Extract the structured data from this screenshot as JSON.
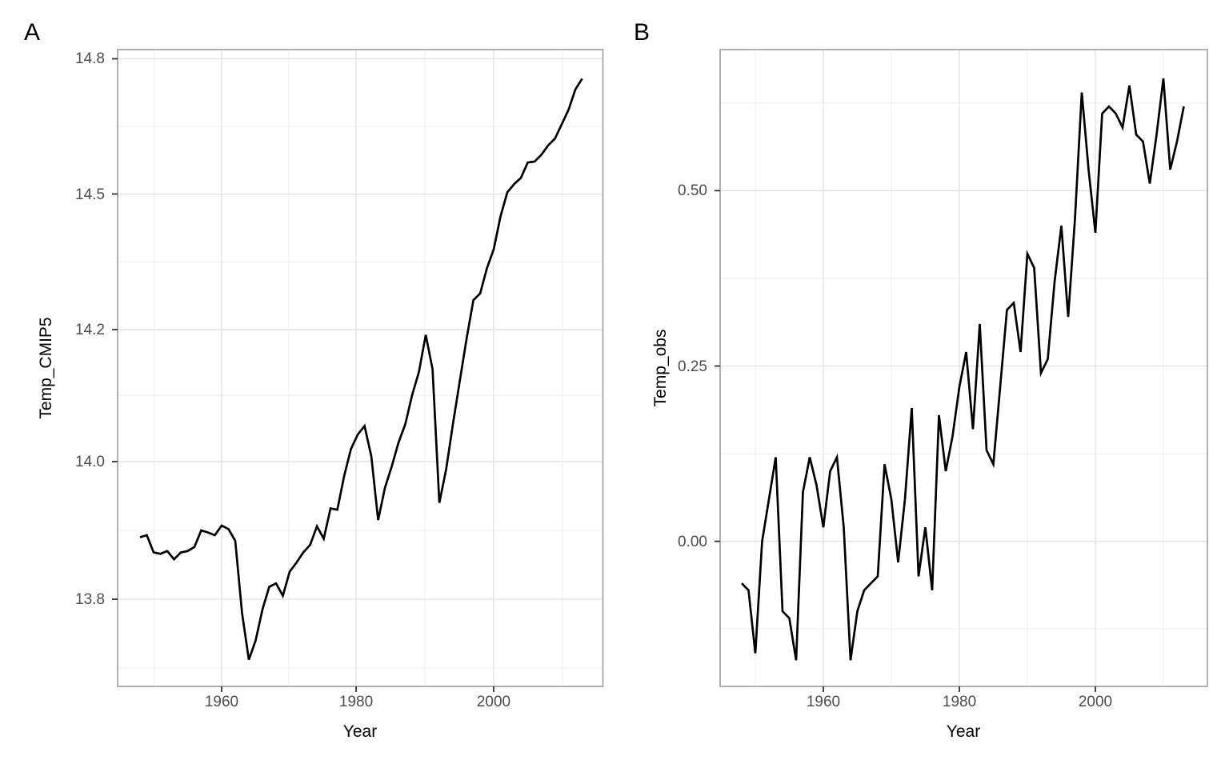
{
  "figure": {
    "background": "#ffffff",
    "line_color": "#000000",
    "grid_major_color": "#e2e2e2",
    "grid_minor_color": "#efefef",
    "panel_border_color": "#a7a7a7",
    "tick_text_color": "#4D4D4D",
    "axis_title_color": "#000000"
  },
  "chart_data": [
    {
      "type": "line",
      "panel_label": "A",
      "xlabel": "Year",
      "ylabel": "Temp_CMIP5",
      "grid": "on",
      "legend": "none",
      "xlim": [
        1944.7,
        2016.3
      ],
      "ylim": [
        13.71,
        14.82
      ],
      "x_ticks": [
        {
          "v": 1960,
          "label": "1960",
          "f": 0.2143
        },
        {
          "v": 1980,
          "label": "1980",
          "f": 0.4914
        },
        {
          "v": 2000,
          "label": "2000",
          "f": 0.7749
        }
      ],
      "x_minor": [
        0.0758,
        0.3529,
        0.6332,
        0.9167
      ],
      "x_scale": [
        {
          "v": 1948,
          "f": 0.0462
        },
        {
          "v": 2013,
          "f": 0.9573
        }
      ],
      "y_ticks": [
        {
          "v": 14.8,
          "label": "14.8",
          "f": 0.0144
        },
        {
          "v": 14.5,
          "label": "14.5",
          "f": 0.2268
        },
        {
          "v": 14.2,
          "label": "14.2",
          "f": 0.4397
        },
        {
          "v": 14.0,
          "label": "14.0",
          "f": 0.647
        },
        {
          "v": 13.8,
          "label": "13.8",
          "f": 0.8631
        }
      ],
      "y_minor": [
        0.1206,
        0.3333,
        0.5433,
        0.755,
        0.9711
      ],
      "y_scale": [
        {
          "v": 13.6,
          "f": 1.0791
        },
        {
          "v": 13.8,
          "f": 0.8631
        },
        {
          "v": 14.0,
          "f": 0.647
        },
        {
          "v": 14.2,
          "f": 0.4397
        },
        {
          "v": 14.5,
          "f": 0.2268
        },
        {
          "v": 14.8,
          "f": 0.0144
        }
      ],
      "years": [
        1948,
        1949,
        1950,
        1951,
        1952,
        1953,
        1954,
        1955,
        1956,
        1957,
        1958,
        1959,
        1960,
        1961,
        1962,
        1963,
        1964,
        1965,
        1966,
        1967,
        1968,
        1969,
        1970,
        1971,
        1972,
        1973,
        1974,
        1975,
        1976,
        1977,
        1978,
        1979,
        1980,
        1981,
        1982,
        1983,
        1984,
        1985,
        1986,
        1987,
        1988,
        1989,
        1990,
        1991,
        1992,
        1993,
        1994,
        1995,
        1996,
        1997,
        1998,
        1999,
        2000,
        2001,
        2002,
        2003,
        2004,
        2005,
        2006,
        2007,
        2008,
        2009,
        2010,
        2011,
        2012,
        2013
      ],
      "values": [
        13.89,
        13.893,
        13.868,
        13.866,
        13.87,
        13.858,
        13.868,
        13.87,
        13.876,
        13.9,
        13.897,
        13.893,
        13.907,
        13.902,
        13.885,
        13.78,
        13.712,
        13.74,
        13.785,
        13.818,
        13.823,
        13.805,
        13.84,
        13.853,
        13.868,
        13.879,
        13.906,
        13.888,
        13.932,
        13.93,
        13.979,
        14.019,
        14.041,
        14.054,
        14.008,
        13.915,
        13.962,
        13.993,
        14.029,
        14.057,
        14.101,
        14.136,
        14.192,
        14.14,
        13.94,
        13.989,
        14.057,
        14.122,
        14.186,
        14.265,
        14.28,
        14.336,
        14.378,
        14.451,
        14.504,
        14.522,
        14.536,
        14.57,
        14.572,
        14.587,
        14.608,
        14.623,
        14.655,
        14.687,
        14.732,
        14.756
      ]
    },
    {
      "type": "line",
      "panel_label": "B",
      "xlabel": "Year",
      "ylabel": "Temp_obs",
      "grid": "on",
      "legend": "none",
      "xlim": [
        1944.8,
        2016.2
      ],
      "ylim": [
        -0.21,
        0.7
      ],
      "x_ticks": [
        {
          "v": 1960,
          "label": "1960",
          "f": 0.2118
        },
        {
          "v": 1980,
          "label": "1980",
          "f": 0.491
        },
        {
          "v": 2000,
          "label": "2000",
          "f": 0.7701
        }
      ],
      "x_minor": [
        0.0723,
        0.3514,
        0.6305,
        0.9097
      ],
      "x_scale": [
        {
          "v": 1948,
          "f": 0.0443
        },
        {
          "v": 2013,
          "f": 0.9516
        }
      ],
      "y_ticks": [
        {
          "v": 0.5,
          "label": "0.50",
          "f": 0.2215
        },
        {
          "v": 0.25,
          "label": "0.25",
          "f": 0.4969
        },
        {
          "v": 0.0,
          "label": "0.00",
          "f": 0.7722
        }
      ],
      "y_minor": [
        0.0838,
        0.3593,
        0.6349,
        0.9095
      ],
      "y_scale": [
        {
          "v": -0.125,
          "f": 0.9095
        },
        {
          "v": 0.0,
          "f": 0.7722
        },
        {
          "v": 0.25,
          "f": 0.4969
        },
        {
          "v": 0.5,
          "f": 0.2215
        },
        {
          "v": 0.625,
          "f": 0.0838
        }
      ],
      "years": [
        1948,
        1949,
        1950,
        1951,
        1952,
        1953,
        1954,
        1955,
        1956,
        1957,
        1958,
        1959,
        1960,
        1961,
        1962,
        1963,
        1964,
        1965,
        1966,
        1967,
        1968,
        1969,
        1970,
        1971,
        1972,
        1973,
        1974,
        1975,
        1976,
        1977,
        1978,
        1979,
        1980,
        1981,
        1982,
        1983,
        1984,
        1985,
        1986,
        1987,
        1988,
        1989,
        1990,
        1991,
        1992,
        1993,
        1994,
        1995,
        1996,
        1997,
        1998,
        1999,
        2000,
        2001,
        2002,
        2003,
        2004,
        2005,
        2006,
        2007,
        2008,
        2009,
        2010,
        2011,
        2012,
        2013
      ],
      "values": [
        -0.06,
        -0.07,
        -0.16,
        0.0,
        0.06,
        0.12,
        -0.1,
        -0.11,
        -0.17,
        0.07,
        0.12,
        0.08,
        0.02,
        0.1,
        0.12,
        0.02,
        -0.17,
        -0.1,
        -0.07,
        -0.06,
        -0.05,
        0.11,
        0.06,
        -0.03,
        0.06,
        0.19,
        -0.05,
        0.02,
        -0.07,
        0.18,
        0.1,
        0.15,
        0.22,
        0.27,
        0.16,
        0.31,
        0.13,
        0.11,
        0.22,
        0.33,
        0.34,
        0.27,
        0.41,
        0.39,
        0.24,
        0.26,
        0.37,
        0.45,
        0.32,
        0.46,
        0.64,
        0.53,
        0.44,
        0.61,
        0.62,
        0.61,
        0.59,
        0.65,
        0.58,
        0.57,
        0.51,
        0.58,
        0.66,
        0.53,
        0.57,
        0.62
      ]
    }
  ]
}
